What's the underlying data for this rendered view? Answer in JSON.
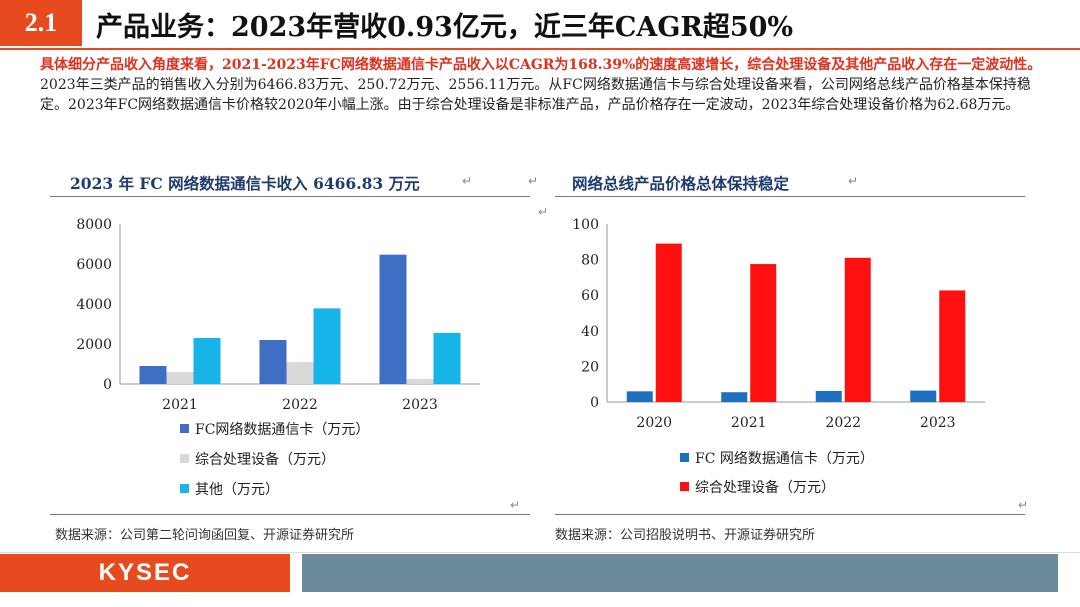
{
  "header": {
    "section_number": "2.1",
    "title": "产品业务：2023年营收0.93亿元，近三年CAGR超50%"
  },
  "summary": {
    "highlight": "具体细分产品收入角度来看，2021-2023年FC网络数据通信卡产品收入以CAGR为168.39%的速度高速增长，综合处理设备及其他产品收入存在一定波动性。",
    "body": "2023年三类产品的销售收入分别为6466.83万元、250.72万元、2556.11万元。从FC网络数据通信卡与综合处理设备来看，公司网络总线产品价格基本保持稳定。2023年FC网络数据通信卡价格较2020年小幅上涨。由于综合处理设备是非标准产品，产品价格存在一定波动，2023年综合处理设备价格为62.68万元。"
  },
  "left_panel": {
    "title": "2023 年 FC 网络数据通信卡收入 6466.83 万元",
    "source": "数据来源：公司第二轮问询函回复、开源证券研究所"
  },
  "right_panel": {
    "title": "网络总线产品价格总体保持稳定",
    "source": "数据来源：公司招股说明书、开源证券研究所"
  },
  "footer": {
    "brand": "KYSEC"
  },
  "chart_data": [
    {
      "type": "bar",
      "title": "2023 年 FC 网络数据通信卡收入 6466.83 万元",
      "categories": [
        "2021",
        "2022",
        "2023"
      ],
      "series": [
        {
          "name": "FC网络数据通信卡（万元）",
          "values": [
            900,
            2200,
            6466.83
          ],
          "color": "#3f6fc5"
        },
        {
          "name": "综合处理设备（万元）",
          "values": [
            600,
            1100,
            250.72
          ],
          "color": "#d9d9d9"
        },
        {
          "name": "其他（万元）",
          "values": [
            2300,
            3780,
            2556.11
          ],
          "color": "#16b4e8"
        }
      ],
      "ylim": [
        0,
        8000
      ],
      "yticks": [
        0,
        2000,
        4000,
        6000,
        8000
      ],
      "legend": "bottom",
      "grid": false
    },
    {
      "type": "bar",
      "title": "网络总线产品价格总体保持稳定",
      "categories": [
        "2020",
        "2021",
        "2022",
        "2023"
      ],
      "series": [
        {
          "name": "FC 网络数据通信卡（万元）",
          "values": [
            6,
            5.5,
            6.2,
            6.4
          ],
          "color": "#1f6fc0"
        },
        {
          "name": "综合处理设备（万元）",
          "values": [
            89,
            77.5,
            81,
            62.68
          ],
          "color": "#ff1010"
        }
      ],
      "ylim": [
        0,
        100
      ],
      "yticks": [
        0,
        20,
        40,
        60,
        80,
        100
      ],
      "legend": "bottom",
      "grid": false
    }
  ]
}
